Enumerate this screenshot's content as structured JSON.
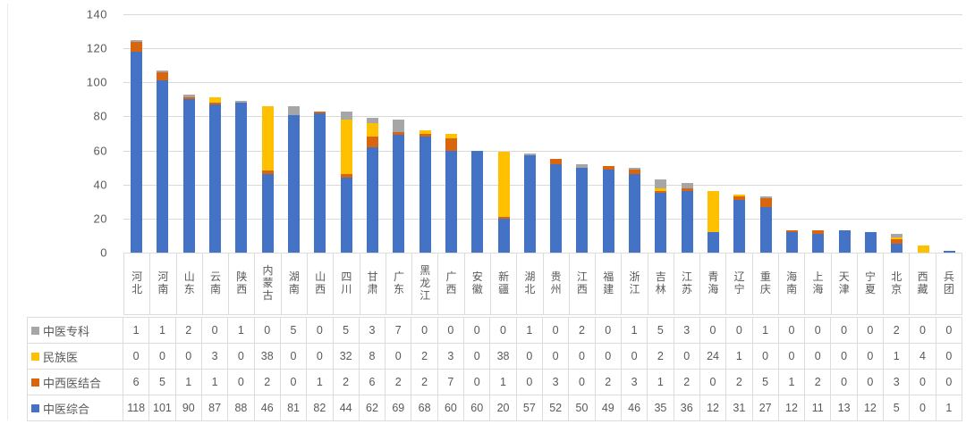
{
  "colors": {
    "background": "#ffffff",
    "text": "#595959",
    "gridline": "#d9d9d9",
    "table_border": "#dcdcdc"
  },
  "chart_data": {
    "type": "bar",
    "stacked": true,
    "ylim": [
      0,
      140
    ],
    "yticks": [
      0,
      20,
      40,
      60,
      80,
      100,
      120,
      140
    ],
    "grid": true,
    "legend_position": "table-left",
    "categories": [
      "河北",
      "河南",
      "山东",
      "云南",
      "陕西",
      "内蒙古",
      "湖南",
      "山西",
      "四川",
      "甘肃",
      "广东",
      "黑龙江",
      "广西",
      "安徽",
      "新疆",
      "湖北",
      "贵州",
      "江西",
      "福建",
      "浙江",
      "吉林",
      "江苏",
      "青海",
      "辽宁",
      "重庆",
      "海南",
      "上海",
      "天津",
      "宁夏",
      "北京",
      "西藏",
      "兵团"
    ],
    "series": [
      {
        "name": "中医专科",
        "color": "#A6A6A6",
        "values": [
          1,
          1,
          2,
          0,
          1,
          0,
          5,
          0,
          5,
          3,
          7,
          0,
          0,
          0,
          0,
          1,
          0,
          2,
          0,
          1,
          5,
          3,
          0,
          0,
          1,
          0,
          0,
          0,
          0,
          2,
          0,
          0
        ]
      },
      {
        "name": "民族医",
        "color": "#FFC000",
        "values": [
          0,
          0,
          0,
          3,
          0,
          38,
          0,
          0,
          32,
          8,
          0,
          2,
          3,
          0,
          38,
          0,
          0,
          0,
          0,
          0,
          2,
          0,
          24,
          1,
          0,
          0,
          0,
          0,
          0,
          1,
          4,
          0
        ]
      },
      {
        "name": "中西医结合",
        "color": "#D9650F",
        "values": [
          6,
          5,
          1,
          1,
          0,
          2,
          0,
          1,
          2,
          6,
          2,
          2,
          7,
          0,
          1,
          0,
          3,
          0,
          2,
          3,
          1,
          2,
          0,
          2,
          5,
          1,
          2,
          0,
          0,
          3,
          0,
          0
        ]
      },
      {
        "name": "中医综合",
        "color": "#4472C4",
        "values": [
          118,
          101,
          90,
          87,
          88,
          46,
          81,
          82,
          44,
          62,
          69,
          68,
          60,
          60,
          20,
          57,
          52,
          50,
          49,
          46,
          35,
          36,
          12,
          31,
          27,
          12,
          11,
          13,
          12,
          5,
          0,
          1
        ]
      }
    ],
    "stack_order_bottom_to_top": [
      "中医综合",
      "中西医结合",
      "民族医",
      "中医专科"
    ]
  }
}
